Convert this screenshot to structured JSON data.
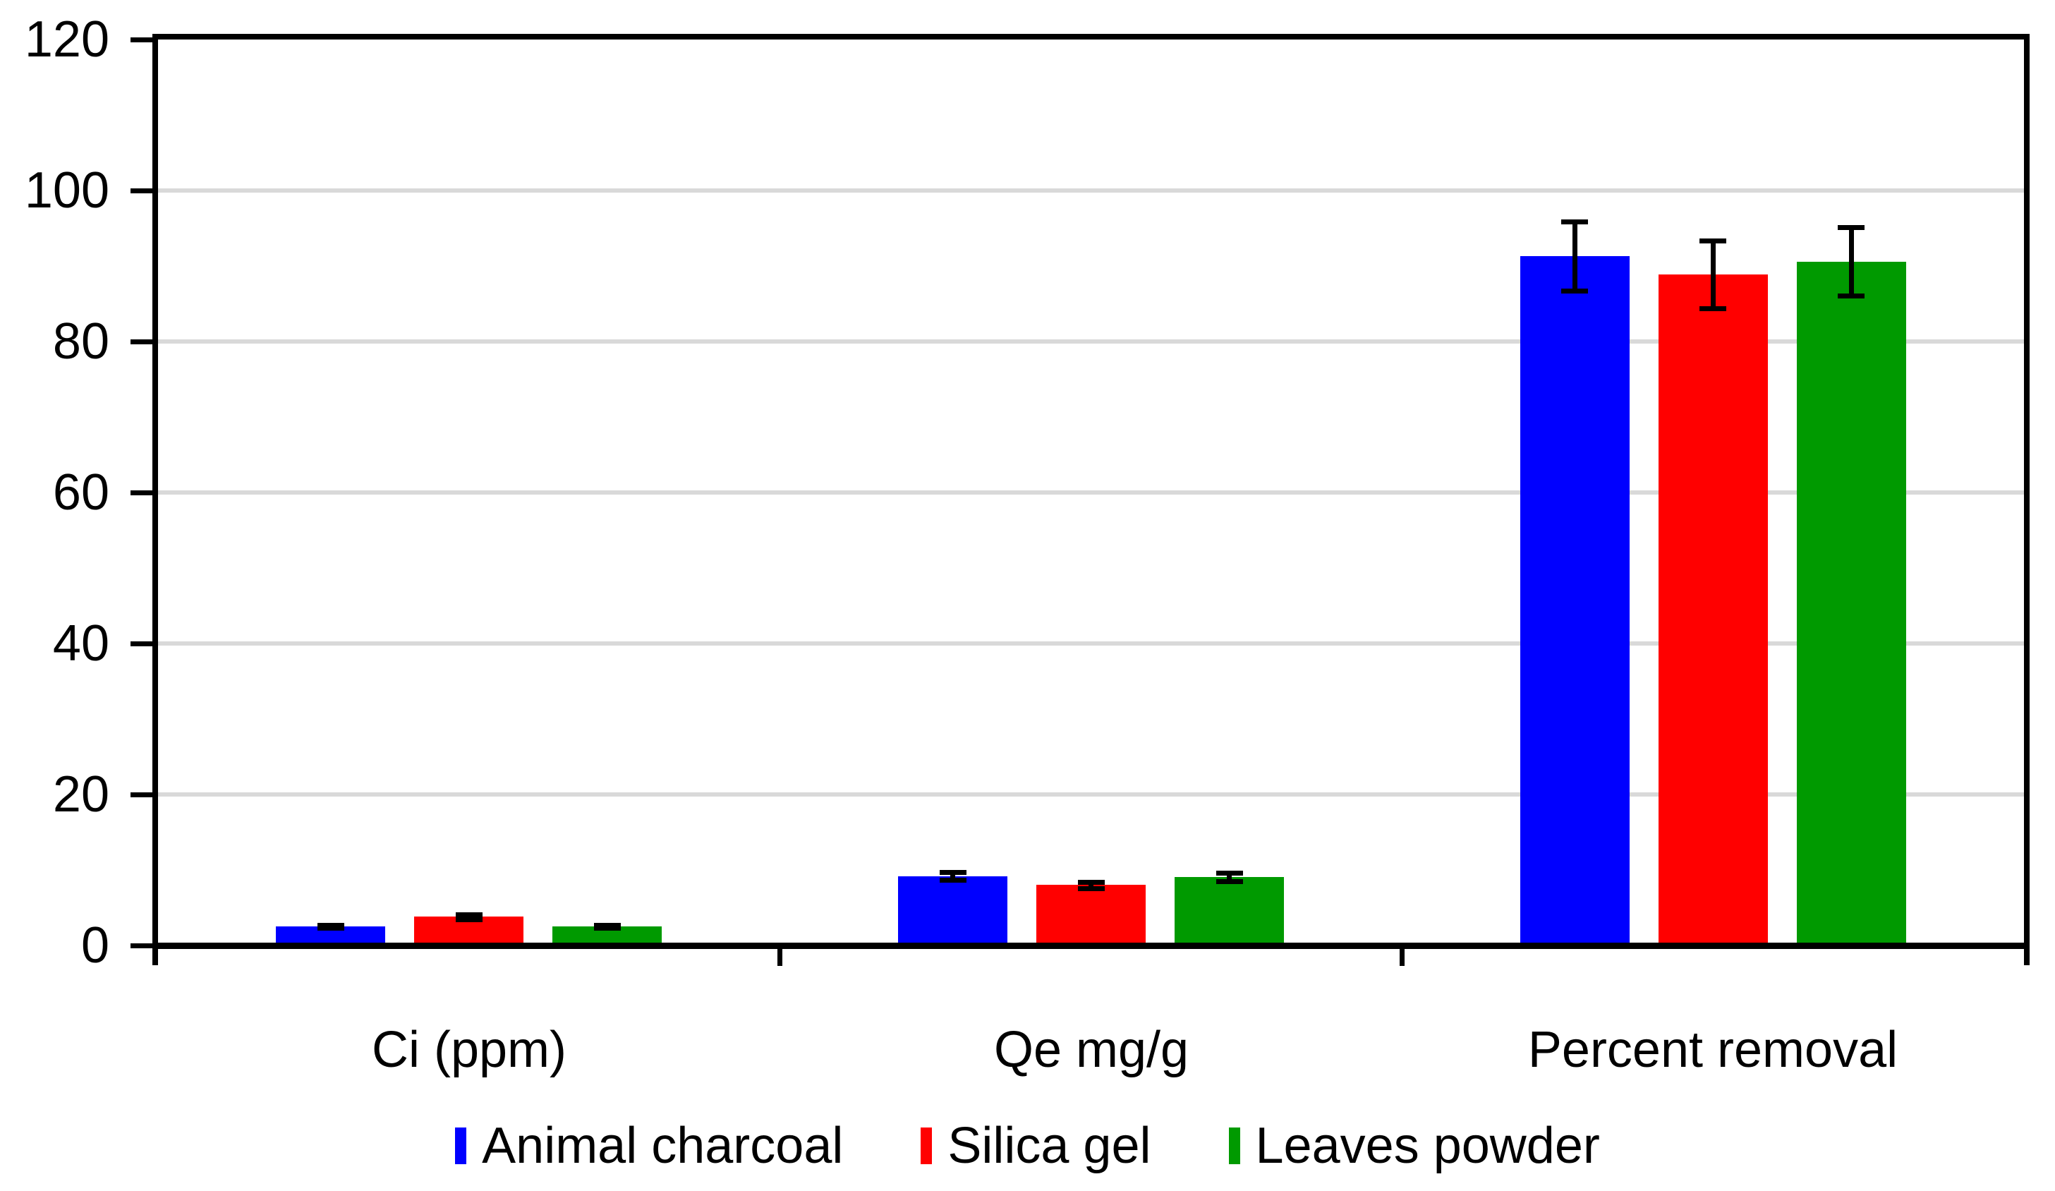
{
  "figure": {
    "background": "#FFFFFF",
    "text_color": "#000000"
  },
  "chart_data": {
    "type": "bar",
    "title": "",
    "xlabel": "",
    "ylabel": "",
    "categories": [
      "Ci (ppm)",
      "Qe mg/g",
      "Percent removal"
    ],
    "series": [
      {
        "name": "Animal charcoal",
        "color": "#0000FF",
        "values": [
          2.5,
          9.2,
          91.3
        ],
        "error_bars": [
          0.2,
          0.5,
          4.6
        ]
      },
      {
        "name": "Silica gel",
        "color": "#FF0000",
        "values": [
          3.8,
          8.0,
          88.9
        ],
        "error_bars": [
          0.3,
          0.45,
          4.5
        ]
      },
      {
        "name": "Leaves powder",
        "color": "#009A00",
        "values": [
          2.5,
          9.1,
          90.6
        ],
        "error_bars": [
          0.2,
          0.55,
          4.5
        ]
      }
    ],
    "ylim": [
      0,
      120
    ],
    "ytick_interval": 20,
    "yticks": [
      0,
      20,
      40,
      60,
      80,
      100,
      120
    ],
    "grid": "horizontal",
    "gridline_color": "#D9D9D9",
    "axis_color": "#000000",
    "error_bar_color": "#000000",
    "legend_position": "bottom"
  },
  "legend": {
    "items": [
      {
        "label": "Animal charcoal",
        "color": "#0000FF"
      },
      {
        "label": "Silica gel",
        "color": "#FF0000"
      },
      {
        "label": "Leaves powder",
        "color": "#009A00"
      }
    ]
  }
}
